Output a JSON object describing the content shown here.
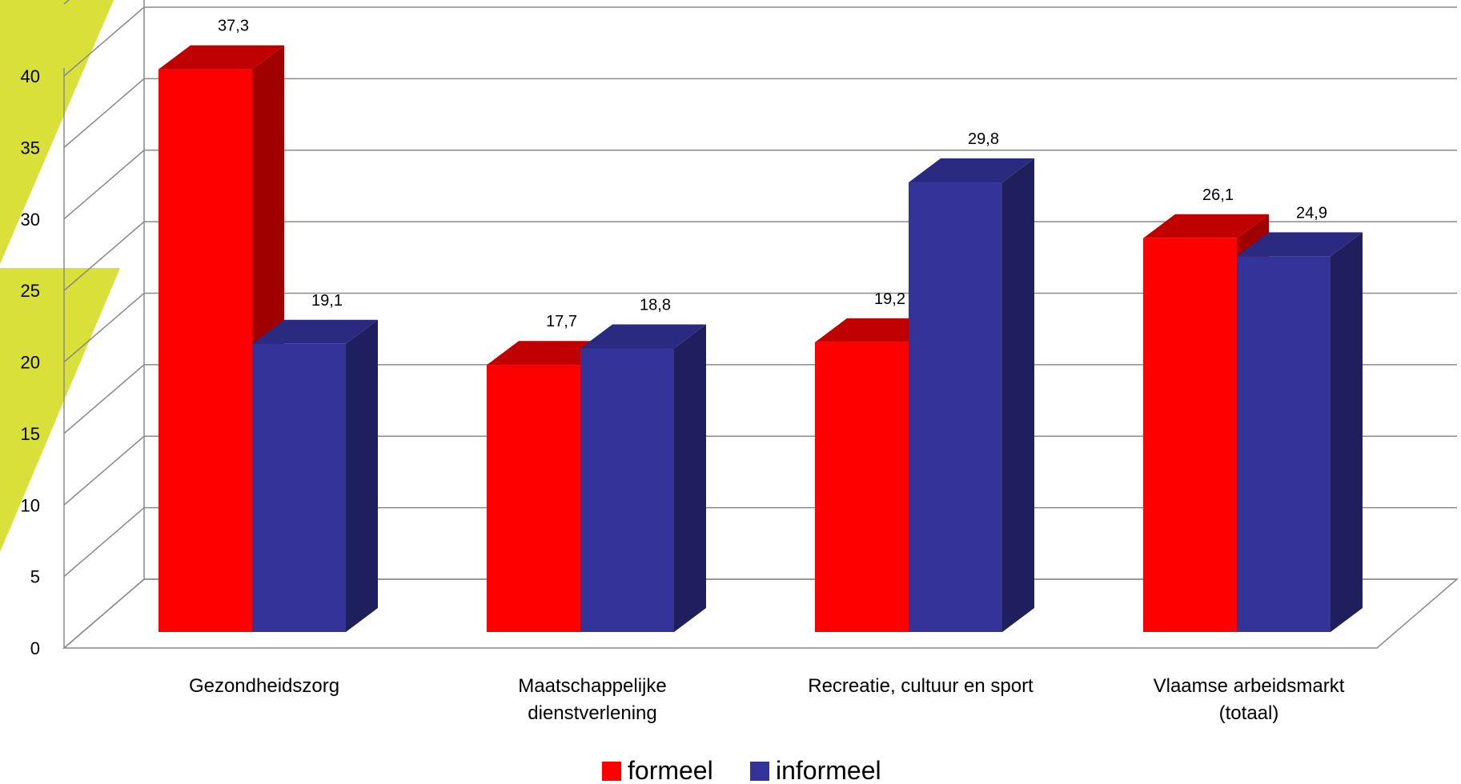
{
  "chart_data": {
    "type": "bar",
    "title": "",
    "xlabel": "",
    "ylabel": "",
    "ylim": [
      0,
      40
    ],
    "yticks": [
      "0",
      "5",
      "10",
      "15",
      "20",
      "25",
      "30",
      "35",
      "40"
    ],
    "categories": [
      [
        "Gezondheidszorg"
      ],
      [
        "Maatschappelijke",
        "dienstverlening"
      ],
      [
        "Recreatie, cultuur en sport"
      ],
      [
        "Vlaamse arbeidsmarkt",
        "(totaal)"
      ]
    ],
    "series": [
      {
        "name": "formeel",
        "color": "#ff0000",
        "top_color": "#c00000",
        "side_color": "#a00000",
        "values": [
          37.3,
          17.7,
          19.2,
          26.1
        ],
        "labels": [
          "37,3",
          "17,7",
          "19,2",
          "26,1"
        ]
      },
      {
        "name": "informeel",
        "color": "#333399",
        "top_color": "#2a2a80",
        "side_color": "#1f1f5e",
        "values": [
          19.1,
          18.8,
          29.8,
          24.9
        ],
        "labels": [
          "19,1",
          "18,8",
          "29,8",
          "24,9"
        ]
      }
    ],
    "grid": true,
    "legend_position": "bottom",
    "decoration_color": "#d9e03a"
  }
}
